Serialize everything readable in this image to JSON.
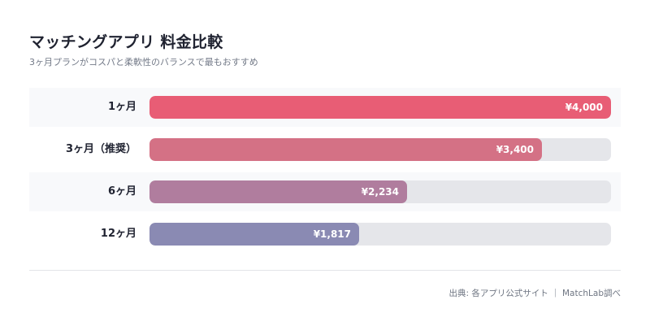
{
  "title": "マッチングアプリ 料金比較",
  "subtitle": "3ヶ月プランがコスパと柔軟性のバランスで最もおすすめ",
  "source": "出典: 各アプリ公式サイト ｜ MatchLab調べ",
  "chart_data": {
    "type": "bar",
    "orientation": "horizontal",
    "title": "マッチングアプリ 料金比較",
    "subtitle": "3ヶ月プランがコスパと柔軟性のバランスで最もおすすめ",
    "categories": [
      "1ヶ月",
      "3ヶ月（推奨）",
      "6ヶ月",
      "12ヶ月"
    ],
    "values": [
      4000,
      3400,
      2234,
      1817
    ],
    "value_labels": [
      "¥4,000",
      "¥3,400",
      "¥2,234",
      "¥1,817"
    ],
    "xlim": [
      0,
      4000
    ],
    "grid": false,
    "legend": "none",
    "colors": [
      "#e85d75",
      "#d47185",
      "#b07d9e",
      "#8a8ab3"
    ],
    "track_color": "#e5e6ea"
  }
}
